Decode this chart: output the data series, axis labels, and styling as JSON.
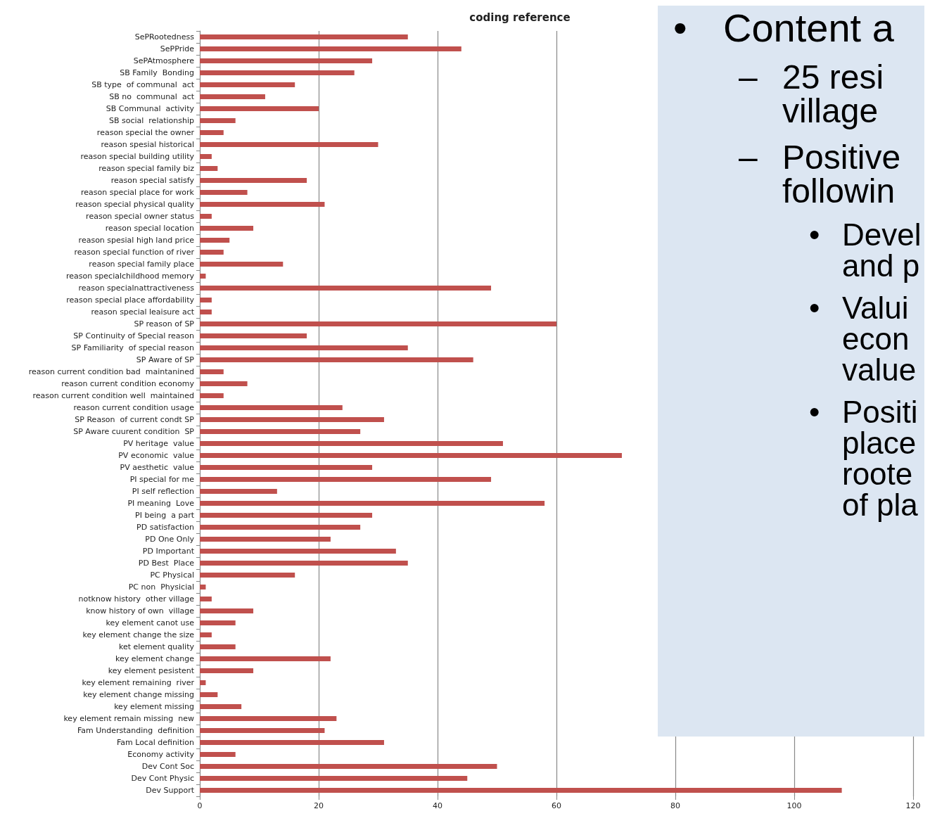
{
  "chart_data": {
    "type": "bar",
    "orientation": "horizontal",
    "title": "coding reference",
    "categories": [
      "SePRootedness",
      "SePPride",
      "SePAtmosphere",
      "SB Family  Bonding",
      "SB type  of communal  act",
      "SB no  communal  act",
      "SB Communal  activity",
      "SB social  relationship",
      "reason special the owner",
      "reason spesial historical",
      "reason special building utility",
      "reason special family biz",
      "reason special satisfy",
      "reason special place for work",
      "reason special physical quality",
      "reason special owner status",
      "reason special location",
      "reason spesial high land price",
      "reason special function of river",
      "reason special family place",
      "reason specialchildhood memory",
      "reason specialnattractiveness",
      "reason special place affordability",
      "reason special leaisure act",
      "SP reason of SP",
      "SP Continuity of Special reason",
      "SP Familiarity  of special reason",
      "SP Aware of SP",
      "reason current condition bad  maintanined",
      "reason current condition economy",
      "reason current condition well  maintained",
      "reason current condition usage",
      "SP Reason  of current condt SP",
      "SP Aware cuurent condition  SP",
      "PV heritage  value",
      "PV economic  value",
      "PV aesthetic  value",
      "PI special for me",
      "PI self reflection",
      "PI meaning  Love",
      "PI being  a part",
      "PD satisfaction",
      "PD One Only",
      "PD Important",
      "PD Best  Place",
      "PC Physical",
      "PC non  Physicial",
      "notknow history  other village",
      "know history of own  village",
      "key element canot use",
      "key element change the size",
      "ket element quality",
      "key element change",
      "key element pesistent",
      "key element remaining  river",
      "key element change missing",
      "key element missing",
      "key element remain missing  new",
      "Fam Understanding  definition",
      "Fam Local definition",
      "Economy activity",
      "Dev Cont Soc",
      "Dev Cont Physic",
      "Dev Support"
    ],
    "values": [
      35,
      44,
      29,
      26,
      16,
      11,
      20,
      6,
      4,
      30,
      2,
      3,
      18,
      8,
      21,
      2,
      9,
      5,
      4,
      14,
      1,
      49,
      2,
      2,
      60,
      18,
      35,
      46,
      4,
      8,
      4,
      24,
      31,
      27,
      51,
      71,
      29,
      49,
      13,
      58,
      29,
      27,
      22,
      33,
      35,
      16,
      1,
      2,
      9,
      6,
      2,
      6,
      22,
      9,
      1,
      3,
      7,
      23,
      21,
      31,
      6,
      50,
      45,
      108
    ],
    "color": "#c0504d",
    "xlim": [
      0,
      120
    ],
    "xticks": [
      0,
      20,
      40,
      60,
      80,
      100,
      120
    ],
    "grid": "x",
    "annotations": [
      "• Content a",
      "– 25 resi\nvillage",
      "– Positive\nfollowin",
      "• Devel\nand p",
      "• Valui\necon\nvalue",
      "• Positi\nplace\nroote\nof pla"
    ]
  }
}
